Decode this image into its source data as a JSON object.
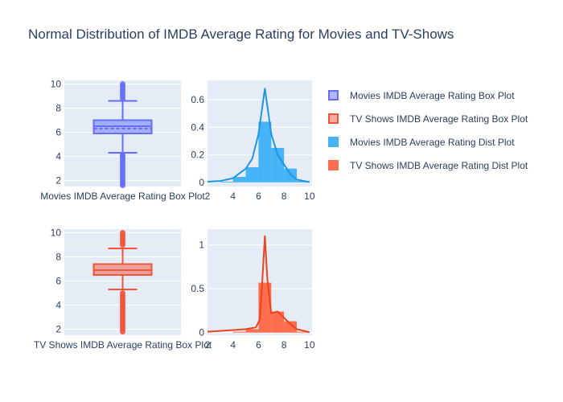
{
  "title": "Normal Distribution of IMDB Average Rating for Movies and TV-Shows",
  "legend": [
    {
      "label": "Movies IMDB Average Rating Box Plot",
      "color": "#636efa",
      "fill": "rgba(99,110,250,0.5)",
      "kind": "box"
    },
    {
      "label": "TV Shows IMDB Average Rating Box Plot",
      "color": "#ef553b",
      "fill": "rgba(239,85,59,0.5)",
      "kind": "box"
    },
    {
      "label": "Movies IMDB Average Rating Dist Plot",
      "color": "#46b3f7",
      "fill": "#46b3f7",
      "kind": "dist"
    },
    {
      "label": "TV Shows IMDB Average Rating Dist Plot",
      "color": "#fc6e4d",
      "fill": "#fc6e4d",
      "kind": "dist"
    }
  ],
  "chart_data": [
    {
      "type": "box",
      "name": "Movies IMDB Average Rating Box Plot",
      "xlabel": "Movies IMDB Average Rating Box Plot",
      "color": "#636efa",
      "ylim": [
        1.5,
        10.3
      ],
      "yticks": [
        2,
        4,
        6,
        8,
        10
      ],
      "stats": {
        "lower_whisker": 4.3,
        "q1": 5.9,
        "median": 6.5,
        "mean": 6.3,
        "q3": 7.0,
        "upper_whisker": 8.6
      },
      "outliers": [
        1.6,
        1.8,
        2.0,
        2.2,
        2.4,
        2.6,
        2.8,
        3.0,
        3.2,
        3.4,
        3.6,
        3.8,
        4.0,
        4.1,
        8.8,
        9.0,
        9.2,
        9.4,
        9.6,
        9.8,
        10.0
      ]
    },
    {
      "type": "bar",
      "name": "Movies IMDB Average Rating Dist Plot",
      "color": "#46b3f7",
      "line_color": "#1e96e0",
      "xlim": [
        2,
        10.2
      ],
      "ylim": [
        -0.03,
        0.74
      ],
      "xticks": [
        2,
        4,
        6,
        8,
        10
      ],
      "yticks": [
        0,
        0.2,
        0.4,
        0.6
      ],
      "bins": [
        {
          "x0": 3,
          "x1": 4,
          "y": 0.005
        },
        {
          "x0": 4,
          "x1": 5,
          "y": 0.04
        },
        {
          "x0": 5,
          "x1": 6,
          "y": 0.11
        },
        {
          "x0": 6,
          "x1": 7,
          "y": 0.44
        },
        {
          "x0": 7,
          "x1": 8,
          "y": 0.25
        },
        {
          "x0": 8,
          "x1": 9,
          "y": 0.1
        },
        {
          "x0": 9,
          "x1": 10,
          "y": 0.01
        }
      ],
      "kde": [
        [
          2,
          0.005
        ],
        [
          3,
          0.01
        ],
        [
          4,
          0.03
        ],
        [
          5,
          0.1
        ],
        [
          5.5,
          0.17
        ],
        [
          6,
          0.35
        ],
        [
          6.3,
          0.55
        ],
        [
          6.5,
          0.68
        ],
        [
          6.7,
          0.55
        ],
        [
          7,
          0.35
        ],
        [
          7.5,
          0.2
        ],
        [
          8,
          0.13
        ],
        [
          8.5,
          0.06
        ],
        [
          9,
          0.02
        ],
        [
          10,
          0.002
        ]
      ]
    },
    {
      "type": "box",
      "name": "TV Shows IMDB Average Rating Box Plot",
      "xlabel": "TV Shows IMDB Average Rating Box Plot",
      "color": "#ef553b",
      "ylim": [
        1.5,
        10.3
      ],
      "yticks": [
        2,
        4,
        6,
        8,
        10
      ],
      "stats": {
        "lower_whisker": 5.3,
        "q1": 6.5,
        "median": 6.9,
        "mean": 6.9,
        "q3": 7.4,
        "upper_whisker": 8.7
      },
      "outliers": [
        1.8,
        2.0,
        2.2,
        2.4,
        2.6,
        2.8,
        3.0,
        3.2,
        3.4,
        3.6,
        3.8,
        4.0,
        4.2,
        4.4,
        4.6,
        4.8,
        5.0,
        9.0,
        9.2,
        9.4,
        9.6,
        9.8,
        10.0
      ]
    },
    {
      "type": "bar",
      "name": "TV Shows IMDB Average Rating Dist Plot",
      "color": "#fc6e4d",
      "line_color": "#e8451e",
      "xlim": [
        2,
        10.2
      ],
      "ylim": [
        -0.03,
        1.18
      ],
      "xticks": [
        2,
        4,
        6,
        8,
        10
      ],
      "yticks": [
        0,
        0.5,
        1
      ],
      "yticklabels": [
        "0",
        "0.5",
        "1"
      ],
      "bins": [
        {
          "x0": 4,
          "x1": 5,
          "y": 0.01
        },
        {
          "x0": 5,
          "x1": 6,
          "y": 0.04
        },
        {
          "x0": 6,
          "x1": 7,
          "y": 0.57
        },
        {
          "x0": 7,
          "x1": 8,
          "y": 0.24
        },
        {
          "x0": 8,
          "x1": 9,
          "y": 0.13
        },
        {
          "x0": 9,
          "x1": 10,
          "y": 0.01
        }
      ],
      "kde": [
        [
          2,
          0.01
        ],
        [
          4,
          0.03
        ],
        [
          5,
          0.04
        ],
        [
          5.8,
          0.06
        ],
        [
          6.1,
          0.15
        ],
        [
          6.3,
          0.6
        ],
        [
          6.5,
          1.1
        ],
        [
          6.7,
          0.6
        ],
        [
          7,
          0.22
        ],
        [
          7.5,
          0.24
        ],
        [
          8,
          0.17
        ],
        [
          8.5,
          0.1
        ],
        [
          9,
          0.04
        ],
        [
          10,
          0.005
        ]
      ]
    }
  ]
}
